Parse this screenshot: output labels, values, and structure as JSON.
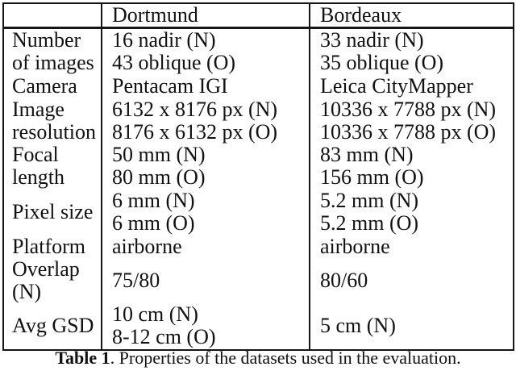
{
  "table": {
    "columns": [
      "",
      "Dortmund",
      "Bordeaux"
    ],
    "rows": [
      {
        "label": [
          "Number",
          "of images"
        ],
        "dortmund": [
          "16 nadir (N)",
          "43 oblique (O)"
        ],
        "bordeaux": [
          "33 nadir (N)",
          "35 oblique (O)"
        ]
      },
      {
        "label": [
          "Camera"
        ],
        "dortmund": [
          "Pentacam IGI"
        ],
        "bordeaux": [
          "Leica CityMapper"
        ]
      },
      {
        "label": [
          "Image",
          "resolution"
        ],
        "dortmund": [
          "6132 x 8176 px (N)",
          "8176 x 6132 px (O)"
        ],
        "bordeaux": [
          "10336 x 7788 px (N)",
          "10336 x 7788 px (O)"
        ]
      },
      {
        "label": [
          "Focal",
          "length"
        ],
        "dortmund": [
          "50 mm (N)",
          "80 mm (O)"
        ],
        "bordeaux": [
          "83 mm (N)",
          "156 mm (O)"
        ]
      },
      {
        "label": [
          "Pixel size"
        ],
        "dortmund": [
          "6 mm (N)",
          "6 mm (O)"
        ],
        "bordeaux": [
          "5.2 mm (N)",
          "5.2 mm (O)"
        ]
      },
      {
        "label": [
          "Platform"
        ],
        "dortmund": [
          "airborne"
        ],
        "bordeaux": [
          "airborne"
        ]
      },
      {
        "label": [
          "Overlap",
          "(N)"
        ],
        "dortmund": [
          "75/80"
        ],
        "bordeaux": [
          "80/60"
        ]
      },
      {
        "label": [
          "Avg GSD"
        ],
        "dortmund": [
          "10 cm (N)",
          "8-12 cm (O)"
        ],
        "bordeaux": [
          "5 cm (N)"
        ]
      }
    ],
    "caption": {
      "label": "Table 1",
      "text": ". Properties of the datasets used in the evaluation."
    },
    "colors": {
      "text": "#111111",
      "border": "#161616",
      "background": "#ffffff"
    }
  }
}
